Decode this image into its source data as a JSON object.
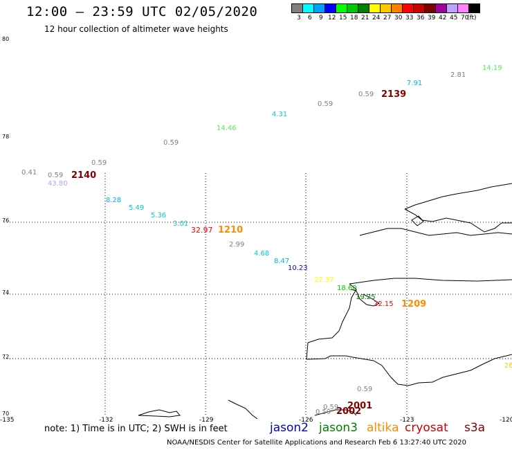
{
  "header": {
    "title": "12:00 – 23:59 UTC 02/05/2020",
    "subtitle": "12 hour collection of altimeter wave heights"
  },
  "legend": {
    "colors": [
      "#808080",
      "#00ffff",
      "#00a0ff",
      "#0000ff",
      "#00ff00",
      "#00c800",
      "#008000",
      "#ffff00",
      "#ffc800",
      "#ff8000",
      "#ff0000",
      "#c80000",
      "#800000",
      "#a000a0",
      "#c0a0ff",
      "#ff80ff",
      "#000000"
    ],
    "labels": [
      "3",
      "6",
      "9",
      "12",
      "15",
      "18",
      "21",
      "24",
      "27",
      "30",
      "33",
      "36",
      "39",
      "42",
      "45",
      "70",
      "(ft)"
    ]
  },
  "map": {
    "lat_labels": [
      "80",
      "78",
      "76",
      "74",
      "72",
      "70"
    ],
    "lon_labels": [
      "-135",
      "-132",
      "-129",
      "-126",
      "-123",
      "-120"
    ],
    "observations": [
      {
        "text": "14.19",
        "color": "#55ee55"
      },
      {
        "text": "2.81",
        "color": "#808080"
      },
      {
        "text": "7.91",
        "color": "#00b0ff"
      },
      {
        "text": "0.59",
        "color": "#808080"
      },
      {
        "text": "2139",
        "color": "#800000"
      },
      {
        "text": "0.59",
        "color": "#808080"
      },
      {
        "text": "4.31",
        "color": "#00cccc"
      },
      {
        "text": "14.46",
        "color": "#55ee55"
      },
      {
        "text": "0.59",
        "color": "#808080"
      },
      {
        "text": "0.59",
        "color": "#808080"
      },
      {
        "text": "0.41",
        "color": "#808080"
      },
      {
        "text": "0.59",
        "color": "#808080"
      },
      {
        "text": "2140",
        "color": "#800000"
      },
      {
        "text": "43.80",
        "color": "#c0a0ff"
      },
      {
        "text": "8.28",
        "color": "#00b0ff"
      },
      {
        "text": "5.49",
        "color": "#00cccc"
      },
      {
        "text": "5.36",
        "color": "#00cccc"
      },
      {
        "text": "3.01",
        "color": "#00cccc"
      },
      {
        "text": "32.97",
        "color": "#ff0000"
      },
      {
        "text": "1210",
        "color": "#ff8c00"
      },
      {
        "text": "2.99",
        "color": "#808080"
      },
      {
        "text": "4.68",
        "color": "#00cccc"
      },
      {
        "text": "8.47",
        "color": "#00b0ff"
      },
      {
        "text": "10.23",
        "color": "#0000ff"
      },
      {
        "text": "22.37",
        "color": "#ffff00"
      },
      {
        "text": "18.60",
        "color": "#00c800"
      },
      {
        "text": "19.25",
        "color": "#008000"
      },
      {
        "text": "32.15",
        "color": "#ff0000"
      },
      {
        "text": "1209",
        "color": "#ff8c00"
      },
      {
        "text": "26",
        "color": "#ffc800"
      },
      {
        "text": "0.59",
        "color": "#808080"
      },
      {
        "text": "0.59",
        "color": "#808080"
      },
      {
        "text": "2001",
        "color": "#800000"
      },
      {
        "text": "0.59",
        "color": "#808080"
      },
      {
        "text": "2002",
        "color": "#800000"
      }
    ]
  },
  "footer": {
    "note": "note: 1) Time is in UTC; 2) SWH is in feet",
    "satellites": [
      {
        "name": "jason2",
        "color": "#0000cc"
      },
      {
        "name": "jason3",
        "color": "#008000"
      },
      {
        "name": "altika",
        "color": "#ff8c00"
      },
      {
        "name": "cryosat",
        "color": "#cc0000"
      },
      {
        "name": "s3a",
        "color": "#800000"
      }
    ],
    "credit": "NOAA/NESDIS Center for Satellite Applications and Research    Feb  6 13:27:40 UTC 2020"
  }
}
